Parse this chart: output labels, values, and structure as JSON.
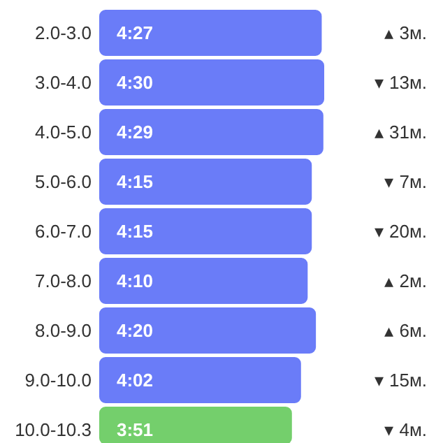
{
  "chart_data": {
    "type": "bar",
    "orientation": "horizontal",
    "categories": [
      "2.0-3.0",
      "3.0-4.0",
      "4.0-5.0",
      "5.0-6.0",
      "6.0-7.0",
      "7.0-8.0",
      "8.0-9.0",
      "9.0-10.0",
      "10.0-10.3"
    ],
    "values": [
      4.45,
      4.5,
      4.483,
      4.25,
      4.25,
      4.167,
      4.333,
      4.033,
      3.85
    ],
    "value_labels": [
      "4:27",
      "4:30",
      "4:29",
      "4:15",
      "4:15",
      "4:10",
      "4:20",
      "4:02",
      "3:51"
    ],
    "colors": [
      "#6a7cf8",
      "#6a7cf8",
      "#6a7cf8",
      "#6a7cf8",
      "#6a7cf8",
      "#6a7cf8",
      "#6a7cf8",
      "#6a7cf8",
      "#74cf6c"
    ],
    "annotations": [
      "▴ 3м.",
      "▾ 13м.",
      "▴ 31м.",
      "▾ 7м.",
      "▾ 20м.",
      "▴ 2м.",
      "▴ 6м.",
      "▾ 15м.",
      "▾ 4м."
    ]
  }
}
